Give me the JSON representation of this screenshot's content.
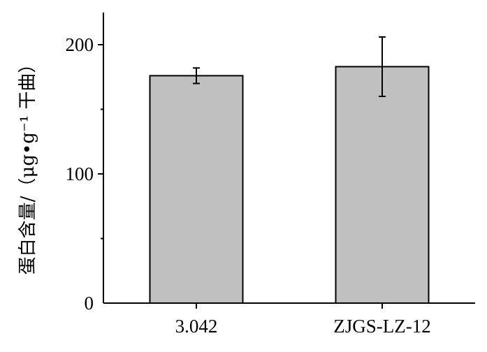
{
  "chart_data": {
    "type": "bar",
    "categories": [
      "3.042",
      "ZJGS-LZ-12"
    ],
    "values": [
      176,
      183
    ],
    "error": [
      6,
      23
    ],
    "xlabel": "",
    "ylabel": "蛋白含量/（μg•g⁻¹ 干曲）",
    "ylim": [
      0,
      225
    ],
    "yticks": [
      0,
      100,
      200
    ],
    "grid": false,
    "bar_color": "#c0c0c0"
  }
}
